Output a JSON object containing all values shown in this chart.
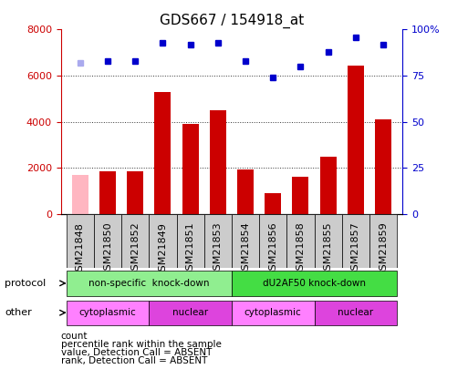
{
  "title": "GDS667 / 154918_at",
  "samples": [
    "GSM21848",
    "GSM21850",
    "GSM21852",
    "GSM21849",
    "GSM21851",
    "GSM21853",
    "GSM21854",
    "GSM21856",
    "GSM21858",
    "GSM21855",
    "GSM21857",
    "GSM21859"
  ],
  "counts": [
    1700,
    1850,
    1850,
    5300,
    3900,
    4500,
    1950,
    900,
    1600,
    2500,
    6450,
    4100
  ],
  "count_absent": [
    true,
    false,
    false,
    false,
    false,
    false,
    false,
    false,
    false,
    false,
    false,
    false
  ],
  "percentile_ranks": [
    82,
    83,
    83,
    93,
    92,
    93,
    83,
    74,
    80,
    88,
    96,
    92
  ],
  "rank_absent": [
    true,
    false,
    false,
    false,
    false,
    false,
    false,
    false,
    false,
    false,
    false,
    false
  ],
  "ylim_left": [
    0,
    8000
  ],
  "ylim_right": [
    0,
    100
  ],
  "yticks_left": [
    0,
    2000,
    4000,
    6000,
    8000
  ],
  "yticks_right": [
    0,
    25,
    50,
    75,
    100
  ],
  "yticklabels_right": [
    "0",
    "25",
    "50",
    "75",
    "100%"
  ],
  "protocol_groups": [
    {
      "label": "non-specific  knock-down",
      "start": 0,
      "end": 6,
      "color": "#90EE90"
    },
    {
      "label": "dU2AF50 knock-down",
      "start": 6,
      "end": 12,
      "color": "#44DD44"
    }
  ],
  "other_groups": [
    {
      "label": "cytoplasmic",
      "start": 0,
      "end": 3,
      "color": "#FF80FF"
    },
    {
      "label": "nuclear",
      "start": 3,
      "end": 6,
      "color": "#DD44DD"
    },
    {
      "label": "cytoplasmic",
      "start": 6,
      "end": 9,
      "color": "#FF80FF"
    },
    {
      "label": "nuclear",
      "start": 9,
      "end": 12,
      "color": "#DD44DD"
    }
  ],
  "bar_color_present": "#CC0000",
  "bar_color_absent": "#FFB6C1",
  "dot_color_present": "#0000CC",
  "dot_color_absent": "#AAAAEE",
  "bar_width": 0.6,
  "protocol_label": "protocol",
  "other_label": "other",
  "legend_items": [
    {
      "label": "count",
      "color": "#CC0000"
    },
    {
      "label": "percentile rank within the sample",
      "color": "#0000CC"
    },
    {
      "label": "value, Detection Call = ABSENT",
      "color": "#FFB6C1"
    },
    {
      "label": "rank, Detection Call = ABSENT",
      "color": "#AAAAEE"
    }
  ],
  "bg_color": "#FFFFFF",
  "grid_color": "#333333",
  "axis_color_left": "#CC0000",
  "axis_color_right": "#0000CC",
  "title_fontsize": 11,
  "tick_fontsize": 8,
  "label_fontsize": 8,
  "xtick_bg_color": "#CCCCCC"
}
